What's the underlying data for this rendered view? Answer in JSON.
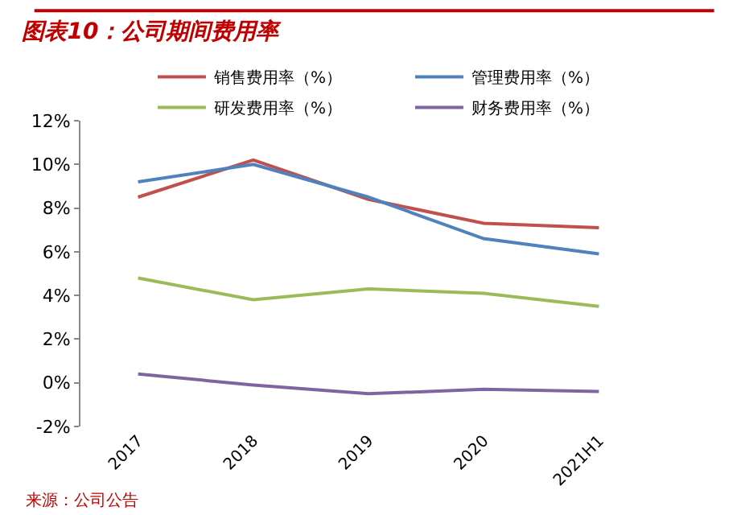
{
  "chart_data": {
    "type": "line",
    "title": "图表10：公司期间费用率",
    "categories": [
      "2017",
      "2018",
      "2019",
      "2020",
      "2021H1"
    ],
    "series": [
      {
        "name": "销售费用率（%）",
        "color": "#c0504d",
        "values": [
          8.5,
          10.2,
          8.4,
          7.3,
          7.1
        ]
      },
      {
        "name": "管理费用率（%）",
        "color": "#4f81bd",
        "values": [
          9.2,
          10.0,
          8.5,
          6.6,
          5.9
        ]
      },
      {
        "name": "研发费用率（%）",
        "color": "#9bbb59",
        "values": [
          4.8,
          3.8,
          4.3,
          4.1,
          3.5
        ]
      },
      {
        "name": "财务费用率（%）",
        "color": "#8064a2",
        "values": [
          0.4,
          -0.1,
          -0.5,
          -0.3,
          -0.4
        ]
      }
    ],
    "ylim": [
      -2,
      12
    ],
    "yticks": [
      {
        "value": -2,
        "label": "-2%"
      },
      {
        "value": 0,
        "label": "0%"
      },
      {
        "value": 2,
        "label": "2%"
      },
      {
        "value": 4,
        "label": "4%"
      },
      {
        "value": 6,
        "label": "6%"
      },
      {
        "value": 8,
        "label": "8%"
      },
      {
        "value": 10,
        "label": "10%"
      },
      {
        "value": 12,
        "label": "12%"
      }
    ],
    "grid": false,
    "legend": "top",
    "marker": "none",
    "line_style": "solid",
    "annotations": [
      "来源：公司公告"
    ]
  }
}
